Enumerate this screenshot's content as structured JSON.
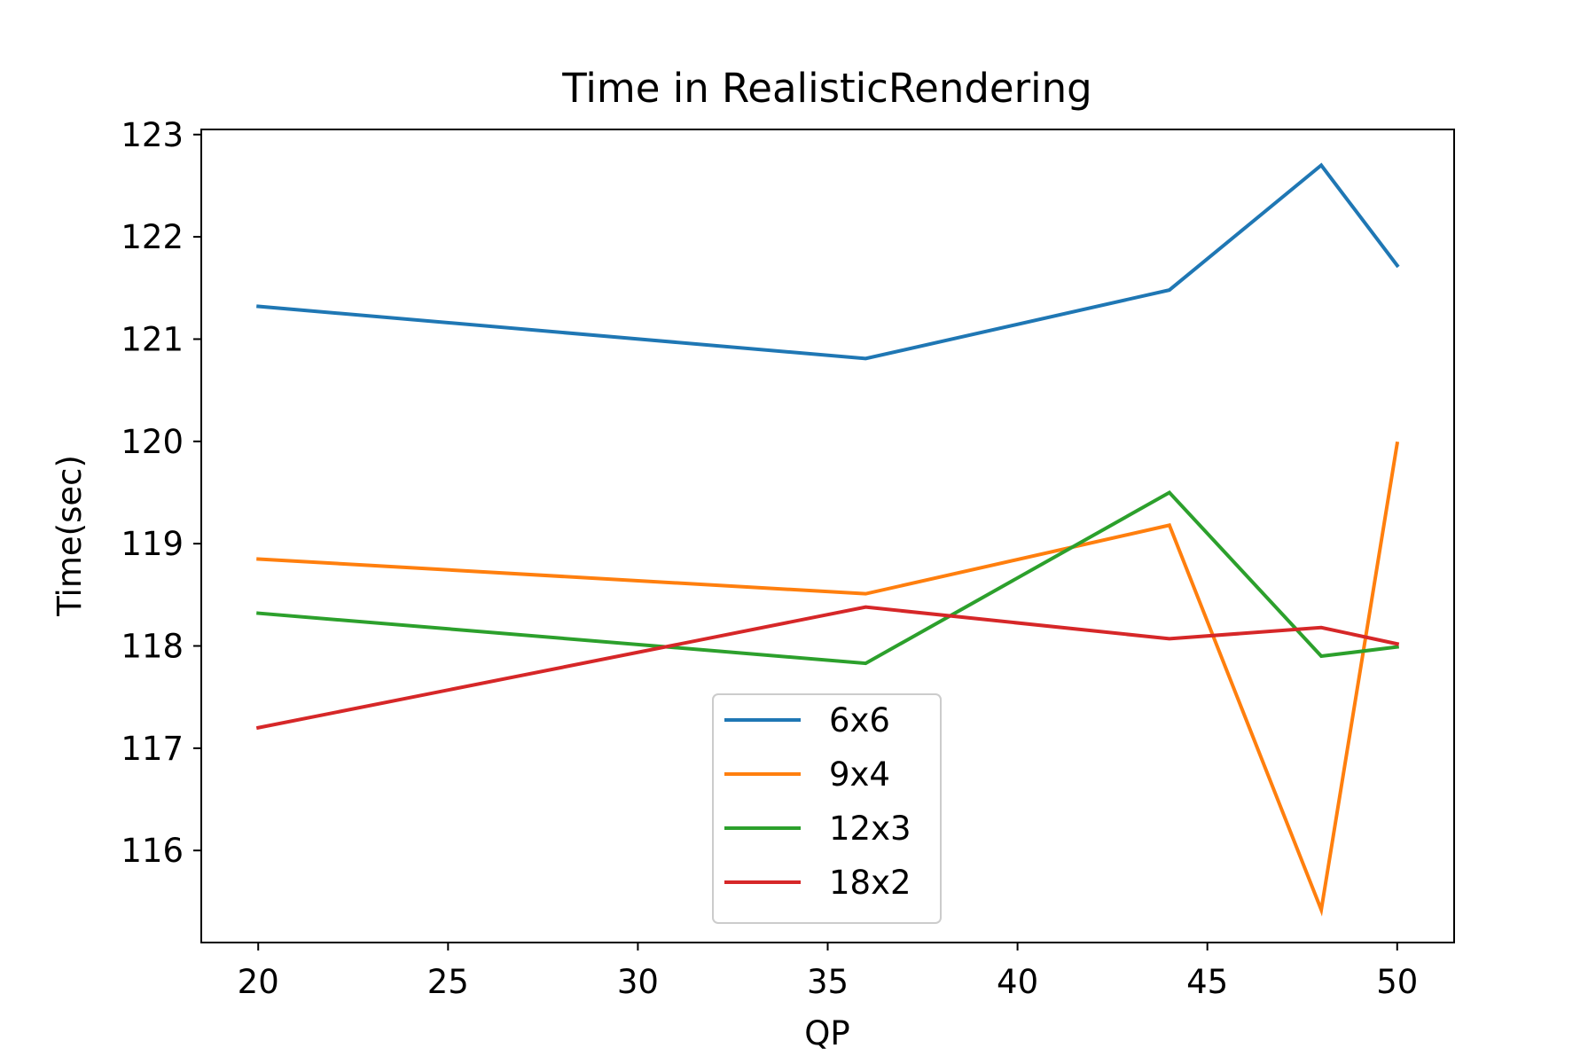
{
  "chart_data": {
    "type": "line",
    "title": "Time in RealisticRendering",
    "xlabel": "QP",
    "ylabel": "Time(sec)",
    "xlim": [
      18.5,
      51.5
    ],
    "ylim": [
      115.1,
      123.05
    ],
    "xticks": [
      20,
      25,
      30,
      35,
      40,
      45,
      50
    ],
    "yticks": [
      116,
      117,
      118,
      119,
      120,
      121,
      122,
      123
    ],
    "x": [
      20,
      36,
      44,
      48,
      50
    ],
    "grid": false,
    "legend_position": "lower-center",
    "series": [
      {
        "name": "6x6",
        "color": "#1f77b4",
        "values": [
          121.32,
          120.81,
          121.48,
          122.7,
          121.72
        ]
      },
      {
        "name": "9x4",
        "color": "#ff7f0e",
        "values": [
          118.85,
          118.51,
          119.18,
          115.42,
          119.98
        ]
      },
      {
        "name": "12x3",
        "color": "#2ca02c",
        "values": [
          118.32,
          117.83,
          119.5,
          117.9,
          117.99
        ]
      },
      {
        "name": "18x2",
        "color": "#d62728",
        "values": [
          117.2,
          118.38,
          118.07,
          118.18,
          118.02
        ]
      }
    ]
  }
}
